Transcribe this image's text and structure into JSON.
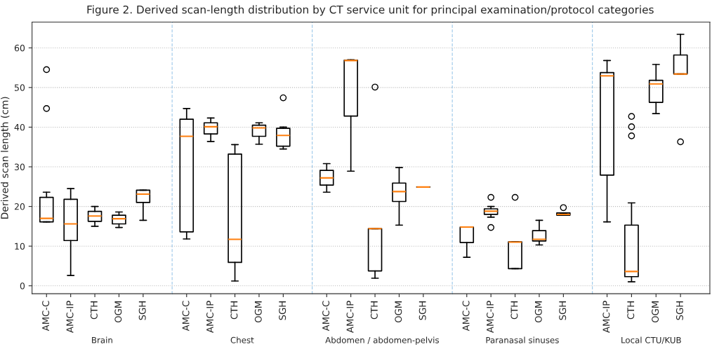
{
  "chart_data": [
    {
      "type": "box",
      "title": "Figure 2. Derived scan-length distribution by CT service unit for principal examination/protocol categories",
      "ylabel": "Derived scan length (cm)",
      "xlabel": "Brain",
      "categories": [
        "AMC-C",
        "AMC-IP",
        "CTH",
        "OGM",
        "SGH"
      ],
      "ylim": [
        -2,
        66.5
      ],
      "yticks": [
        0,
        10,
        20,
        30,
        40,
        50,
        60
      ],
      "grid": "y",
      "boxes": [
        {
          "low": 16.1,
          "q1": 16.1,
          "median": 17.0,
          "q3": 22.3,
          "high": 23.6,
          "outliers": [
            54.5,
            44.7
          ]
        },
        {
          "low": 2.6,
          "q1": 11.4,
          "median": 15.6,
          "q3": 21.8,
          "high": 24.5
        },
        {
          "low": 15.0,
          "q1": 16.25,
          "median": 17.6,
          "q3": 18.75,
          "high": 20.0
        },
        {
          "low": 14.7,
          "q1": 15.6,
          "median": 16.9,
          "q3": 17.8,
          "high": 18.6
        },
        {
          "low": 16.5,
          "q1": 21.0,
          "median": 23.1,
          "q3": 24.1,
          "high": 24.1
        }
      ]
    },
    {
      "type": "box",
      "xlabel": "Chest",
      "categories": [
        "AMC-C",
        "AMC-IP",
        "CTH",
        "OGM",
        "SGH"
      ],
      "ylim": [
        -2,
        66.5
      ],
      "yticks": [
        0,
        10,
        20,
        30,
        40,
        50,
        60
      ],
      "grid": "y",
      "tick_labels": "x",
      "boxes": [
        {
          "low": 11.8,
          "q1": 13.6,
          "median": 37.7,
          "q3": 42.0,
          "high": 44.7
        },
        {
          "low": 36.4,
          "q1": 38.3,
          "median": 40.1,
          "q3": 41.1,
          "high": 42.3
        },
        {
          "low": 1.2,
          "q1": 5.9,
          "median": 11.7,
          "q3": 33.2,
          "high": 35.6
        },
        {
          "low": 35.7,
          "q1": 37.7,
          "median": 39.8,
          "q3": 40.5,
          "high": 41.1
        },
        {
          "low": 34.5,
          "q1": 35.2,
          "median": 37.9,
          "q3": 39.7,
          "high": 40.0,
          "outliers": [
            47.4
          ]
        }
      ]
    },
    {
      "type": "box",
      "xlabel": "Abdomen / abdomen-pelvis",
      "categories": [
        "AMC-C",
        "AMC-IP",
        "CTH",
        "OGM",
        "SGH"
      ],
      "ylim": [
        -2,
        66.5
      ],
      "yticks": [
        0,
        10,
        20,
        30,
        40,
        50,
        60
      ],
      "grid": "y",
      "tick_labels": "x",
      "boxes": [
        {
          "low": 23.6,
          "q1": 25.4,
          "median": 27.2,
          "q3": 29.1,
          "high": 30.8
        },
        {
          "low": 28.9,
          "q1": 42.8,
          "median": 56.8,
          "q3": 56.9,
          "high": 57.0
        },
        {
          "low": 1.9,
          "q1": 3.75,
          "median": 14.4,
          "q3": 14.4,
          "high": 14.4,
          "outliers": [
            50.1
          ]
        },
        {
          "low": 15.3,
          "q1": 21.25,
          "median": 23.75,
          "q3": 25.9,
          "high": 29.8
        },
        {
          "low": 24.9,
          "q1": 24.9,
          "median": 24.9,
          "q3": 24.9,
          "high": 24.9
        }
      ]
    },
    {
      "type": "box",
      "xlabel": "Paranasal sinuses",
      "categories": [
        "AMC-C",
        "AMC-IP",
        "CTH",
        "OGM",
        "SGH"
      ],
      "ylim": [
        -2,
        66.5
      ],
      "yticks": [
        0,
        10,
        20,
        30,
        40,
        50,
        60
      ],
      "grid": "y",
      "tick_labels": "x",
      "boxes": [
        {
          "low": 7.2,
          "q1": 10.9,
          "median": 14.8,
          "q3": 14.8,
          "high": 14.8
        },
        {
          "low": 17.3,
          "q1": 18.0,
          "median": 18.8,
          "q3": 19.4,
          "high": 20.0,
          "outliers": [
            22.3,
            14.7
          ]
        },
        {
          "low": 4.3,
          "q1": 4.3,
          "median": 11.0,
          "q3": 11.1,
          "high": 11.1,
          "outliers": [
            22.3
          ]
        },
        {
          "low": 10.3,
          "q1": 11.3,
          "median": 11.7,
          "q3": 13.9,
          "high": 16.5
        },
        {
          "low": 17.8,
          "q1": 17.8,
          "median": 18.0,
          "q3": 18.35,
          "high": 18.35,
          "outliers": [
            19.7
          ]
        }
      ]
    },
    {
      "type": "box",
      "xlabel": "Local CTU/KUB",
      "categories": [
        "AMC-IP",
        "CTH",
        "OGM",
        "SGH"
      ],
      "ylim": [
        -2,
        66.5
      ],
      "yticks": [
        0,
        10,
        20,
        30,
        40,
        50,
        60
      ],
      "grid": "y",
      "tick_labels": "x",
      "boxes": [
        {
          "low": 16.1,
          "q1": 27.9,
          "median": 52.95,
          "q3": 53.75,
          "high": 56.8
        },
        {
          "low": 1.0,
          "q1": 2.3,
          "median": 3.6,
          "q3": 15.3,
          "high": 20.9,
          "outliers": [
            42.7,
            40.1,
            37.8
          ]
        },
        {
          "low": 43.4,
          "q1": 46.25,
          "median": 50.9,
          "q3": 51.8,
          "high": 55.8
        },
        {
          "low": 53.4,
          "q1": 53.4,
          "median": 53.4,
          "q3": 58.2,
          "high": 63.4,
          "outliers": [
            36.3
          ]
        }
      ]
    }
  ]
}
